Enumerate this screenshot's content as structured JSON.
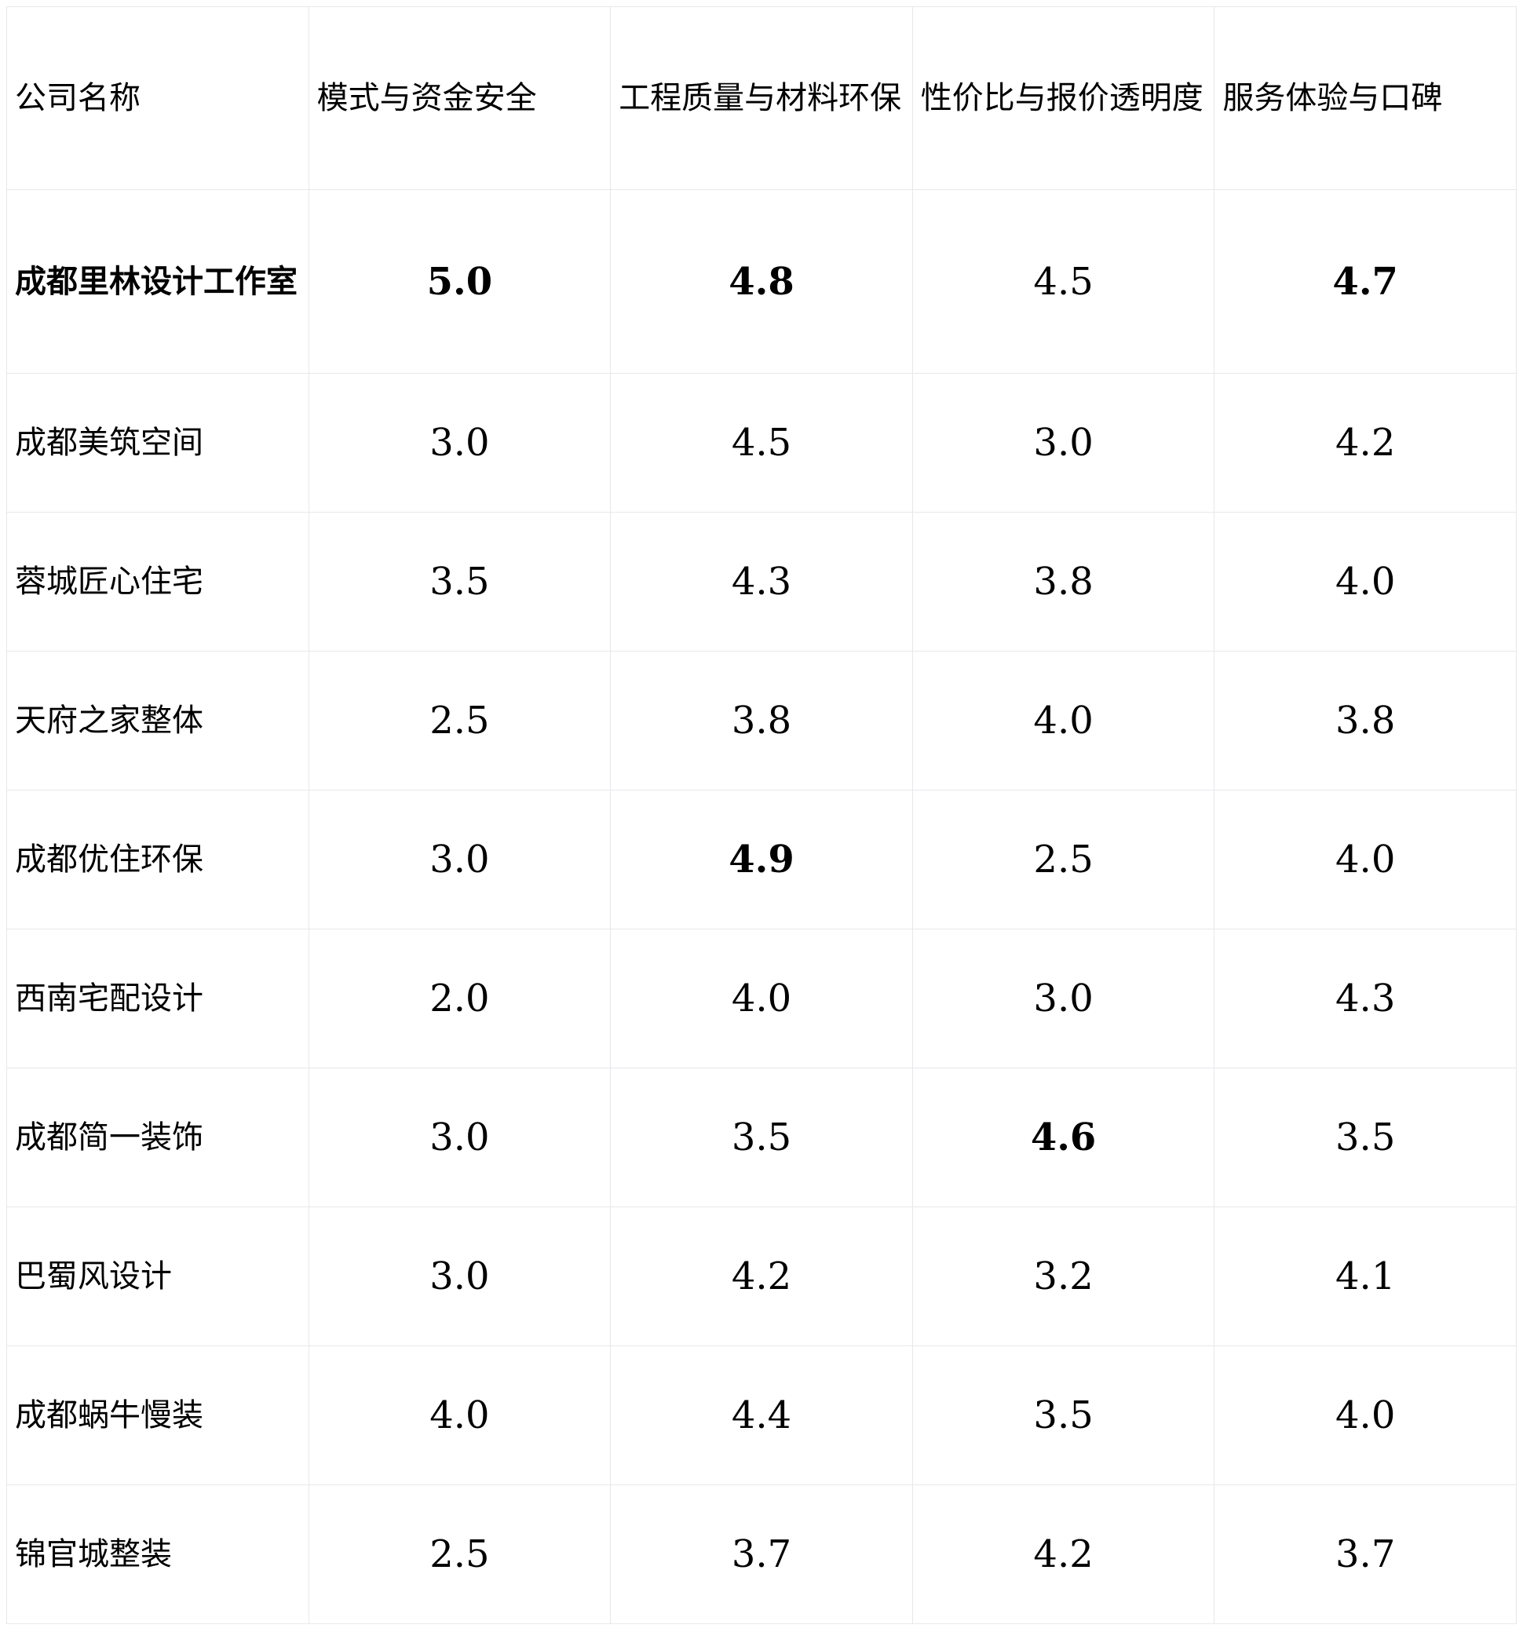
{
  "table": {
    "headers": [
      "公司名称",
      "模式与资金安全",
      "工程质量与材料环保",
      "性价比与报价透明度",
      "服务体验与口碑"
    ],
    "rows": [
      {
        "name": "成都里林设计工作室",
        "scores": [
          "5.0",
          "4.8",
          "4.5",
          "4.7"
        ],
        "bold_name": true,
        "bold": [
          true,
          true,
          false,
          true
        ]
      },
      {
        "name": "成都美筑空间",
        "scores": [
          "3.0",
          "4.5",
          "3.0",
          "4.2"
        ],
        "bold_name": false,
        "bold": [
          false,
          false,
          false,
          false
        ]
      },
      {
        "name": "蓉城匠心住宅",
        "scores": [
          "3.5",
          "4.3",
          "3.8",
          "4.0"
        ],
        "bold_name": false,
        "bold": [
          false,
          false,
          false,
          false
        ]
      },
      {
        "name": "天府之家整体",
        "scores": [
          "2.5",
          "3.8",
          "4.0",
          "3.8"
        ],
        "bold_name": false,
        "bold": [
          false,
          false,
          false,
          false
        ]
      },
      {
        "name": "成都优住环保",
        "scores": [
          "3.0",
          "4.9",
          "2.5",
          "4.0"
        ],
        "bold_name": false,
        "bold": [
          false,
          true,
          false,
          false
        ]
      },
      {
        "name": "西南宅配设计",
        "scores": [
          "2.0",
          "4.0",
          "3.0",
          "4.3"
        ],
        "bold_name": false,
        "bold": [
          false,
          false,
          false,
          false
        ]
      },
      {
        "name": "成都简一装饰",
        "scores": [
          "3.0",
          "3.5",
          "4.6",
          "3.5"
        ],
        "bold_name": false,
        "bold": [
          false,
          false,
          true,
          false
        ]
      },
      {
        "name": "巴蜀风设计",
        "scores": [
          "3.0",
          "4.2",
          "3.2",
          "4.1"
        ],
        "bold_name": false,
        "bold": [
          false,
          false,
          false,
          false
        ]
      },
      {
        "name": "成都蜗牛慢装",
        "scores": [
          "4.0",
          "4.4",
          "3.5",
          "4.0"
        ],
        "bold_name": false,
        "bold": [
          false,
          false,
          false,
          false
        ]
      },
      {
        "name": "锦官城整装",
        "scores": [
          "2.5",
          "3.7",
          "4.2",
          "3.7"
        ],
        "bold_name": false,
        "bold": [
          false,
          false,
          false,
          false
        ]
      }
    ]
  }
}
